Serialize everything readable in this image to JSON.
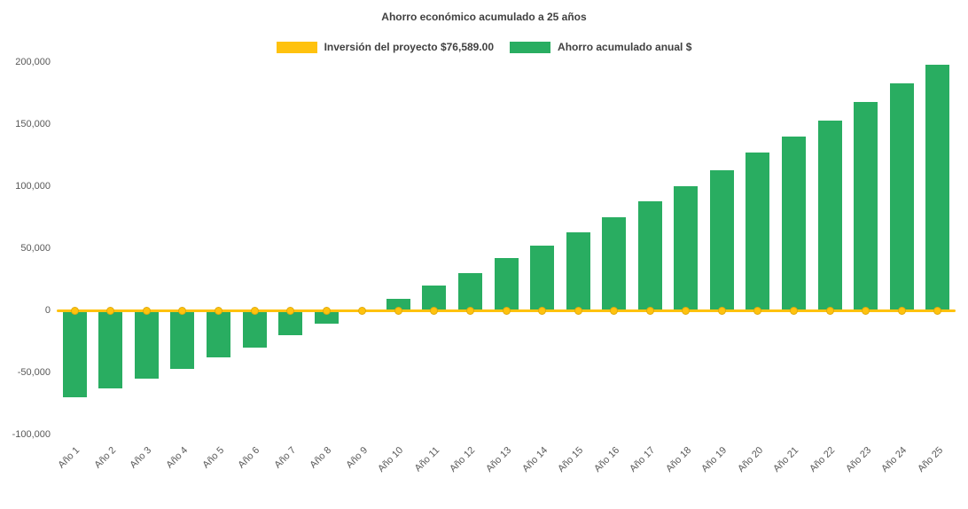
{
  "title": "Ahorro económico acumulado a 25 años",
  "legend": [
    {
      "label": "Inversión del proyecto $76,589.00",
      "color": "#FFC20E",
      "swatch_name": "investment-line-swatch"
    },
    {
      "label": "Ahorro acumulado anual $",
      "color": "#29AD61",
      "swatch_name": "savings-bar-swatch"
    }
  ],
  "colors": {
    "bar_green": "#29AD61",
    "line_yellow": "#FFC20E",
    "axis_text": "#595959",
    "title_text": "#404040",
    "background": "#FFFFFF"
  },
  "chart_data": {
    "type": "bar",
    "title": "Ahorro económico acumulado a 25 años",
    "xlabel": "",
    "ylabel": "",
    "ylim": [
      -100000,
      200000
    ],
    "yticks": [
      200000,
      150000,
      100000,
      50000,
      0,
      -50000,
      -100000
    ],
    "grid": false,
    "legend_position": "top",
    "categories": [
      "Año 1",
      "Año 2",
      "Año 3",
      "Año 4",
      "Año 5",
      "Año 6",
      "Año 7",
      "Año 8",
      "Año 9",
      "Año 10",
      "Año 11",
      "Año 12",
      "Año 13",
      "Año 14",
      "Año 15",
      "Año 16",
      "Año 17",
      "Año 18",
      "Año 19",
      "Año 20",
      "Año 21",
      "Año 22",
      "Año 23",
      "Año 24",
      "Año 25"
    ],
    "series": [
      {
        "name": "Ahorro acumulado anual $",
        "type": "bar",
        "color": "#29AD61",
        "values": [
          -70000,
          -63000,
          -55000,
          -47000,
          -38000,
          -30000,
          -20000,
          -11000,
          -1000,
          9000,
          20000,
          30000,
          42000,
          52000,
          63000,
          75000,
          88000,
          100000,
          113000,
          127000,
          140000,
          153000,
          168000,
          183000,
          198000
        ]
      },
      {
        "name": "Inversión del proyecto $76,589.00",
        "type": "line",
        "color": "#FFC20E",
        "values": [
          0,
          0,
          0,
          0,
          0,
          0,
          0,
          0,
          0,
          0,
          0,
          0,
          0,
          0,
          0,
          0,
          0,
          0,
          0,
          0,
          0,
          0,
          0,
          0,
          0
        ]
      }
    ]
  }
}
